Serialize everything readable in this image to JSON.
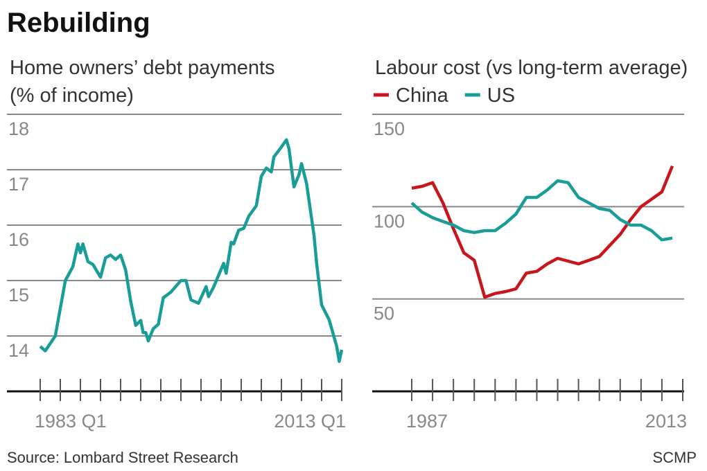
{
  "header": {
    "title": "Rebuilding"
  },
  "chart_data": [
    {
      "type": "line",
      "title": "Home owners’ debt payments",
      "subtitle": "(% of income)",
      "x": [
        1983,
        1983.5,
        1984.5,
        1985,
        1985.5,
        1986.25,
        1986.75,
        1987,
        1987.25,
        1987.75,
        1988.25,
        1989,
        1989.5,
        1990,
        1990.5,
        1991,
        1991.5,
        1992,
        1992.5,
        1993,
        1993.25,
        1993.5,
        1993.75,
        1994.25,
        1994.75,
        1995.25,
        1996,
        1997,
        1997.5,
        1998,
        1998.75,
        1999.5,
        1999.75,
        2000.25,
        2001.25,
        2001.5,
        2002,
        2002.25,
        2002.75,
        2003.25,
        2003.75,
        2004.5,
        2005,
        2005.5,
        2006,
        2006.25,
        2007,
        2007.5,
        2007.75,
        2008.25,
        2008.75,
        2009,
        2009.5,
        2010.25,
        2010.5,
        2011,
        2011.5,
        2011.75,
        2012.5,
        2012.75,
        2013
      ],
      "values": [
        13.81,
        13.73,
        14.0,
        14.5,
        15.0,
        15.25,
        15.66,
        15.5,
        15.66,
        15.34,
        15.29,
        15.06,
        15.41,
        15.46,
        15.38,
        15.46,
        15.19,
        14.63,
        14.19,
        14.28,
        14.06,
        14.06,
        13.91,
        14.13,
        14.21,
        14.69,
        14.79,
        15.0,
        15.0,
        14.65,
        14.59,
        14.89,
        14.71,
        14.88,
        15.31,
        15.13,
        15.69,
        15.66,
        15.91,
        15.94,
        16.16,
        16.35,
        16.88,
        17.03,
        16.96,
        17.23,
        17.41,
        17.54,
        17.38,
        16.69,
        16.91,
        17.11,
        16.75,
        15.81,
        15.31,
        14.56,
        14.38,
        14.29,
        13.81,
        13.54,
        13.75
      ],
      "color": "#1a9c98",
      "xlim": [
        1983,
        2013
      ],
      "xticks": [
        {
          "value": 1983,
          "label": "1983 Q1"
        },
        {
          "value": 2013,
          "label": "2013 Q1"
        }
      ],
      "xminorticks": [
        1985,
        1987,
        1989,
        1991,
        1993,
        1995,
        1997,
        1999,
        2001,
        2003,
        2005,
        2007,
        2009,
        2011
      ],
      "ylim": [
        13,
        18
      ],
      "yticks": [
        14,
        15,
        16,
        17,
        18
      ],
      "grid": true
    },
    {
      "type": "line",
      "title": "Labour cost (vs long-term average)",
      "x": [
        1987,
        1988,
        1989,
        1990,
        1991,
        1992,
        1993,
        1994,
        1995,
        1996,
        1997,
        1998,
        1999,
        2000,
        2001,
        2002,
        2003,
        2004,
        2005,
        2006,
        2007,
        2008,
        2009,
        2010,
        2011,
        2012
      ],
      "series": [
        {
          "name": "China",
          "color": "#c8161d",
          "values": [
            110,
            111,
            113,
            102,
            88,
            75,
            71,
            51,
            53,
            54,
            55.5,
            64,
            65,
            69,
            72,
            70.5,
            69,
            71,
            73,
            79,
            85,
            93,
            100,
            104,
            108,
            122
          ]
        },
        {
          "name": "US",
          "color": "#1a9c98",
          "values": [
            102,
            97,
            94,
            92,
            90,
            87,
            86,
            87,
            87,
            91,
            96,
            105,
            105,
            109,
            114,
            113,
            105,
            102,
            99,
            98,
            93,
            90,
            90,
            87,
            82,
            83
          ]
        }
      ],
      "xlim": [
        1987,
        2013
      ],
      "xticks": [
        1987,
        2013
      ],
      "xminorticks": [
        1989,
        1991,
        1993,
        1995,
        1997,
        1999,
        2001,
        2003,
        2005,
        2007,
        2009,
        2011
      ],
      "ylim": [
        0,
        150
      ],
      "yticks": [
        50,
        100,
        150
      ],
      "grid": true
    }
  ],
  "footer": {
    "source": "Source: Lombard Street Research",
    "credit": "SCMP"
  }
}
